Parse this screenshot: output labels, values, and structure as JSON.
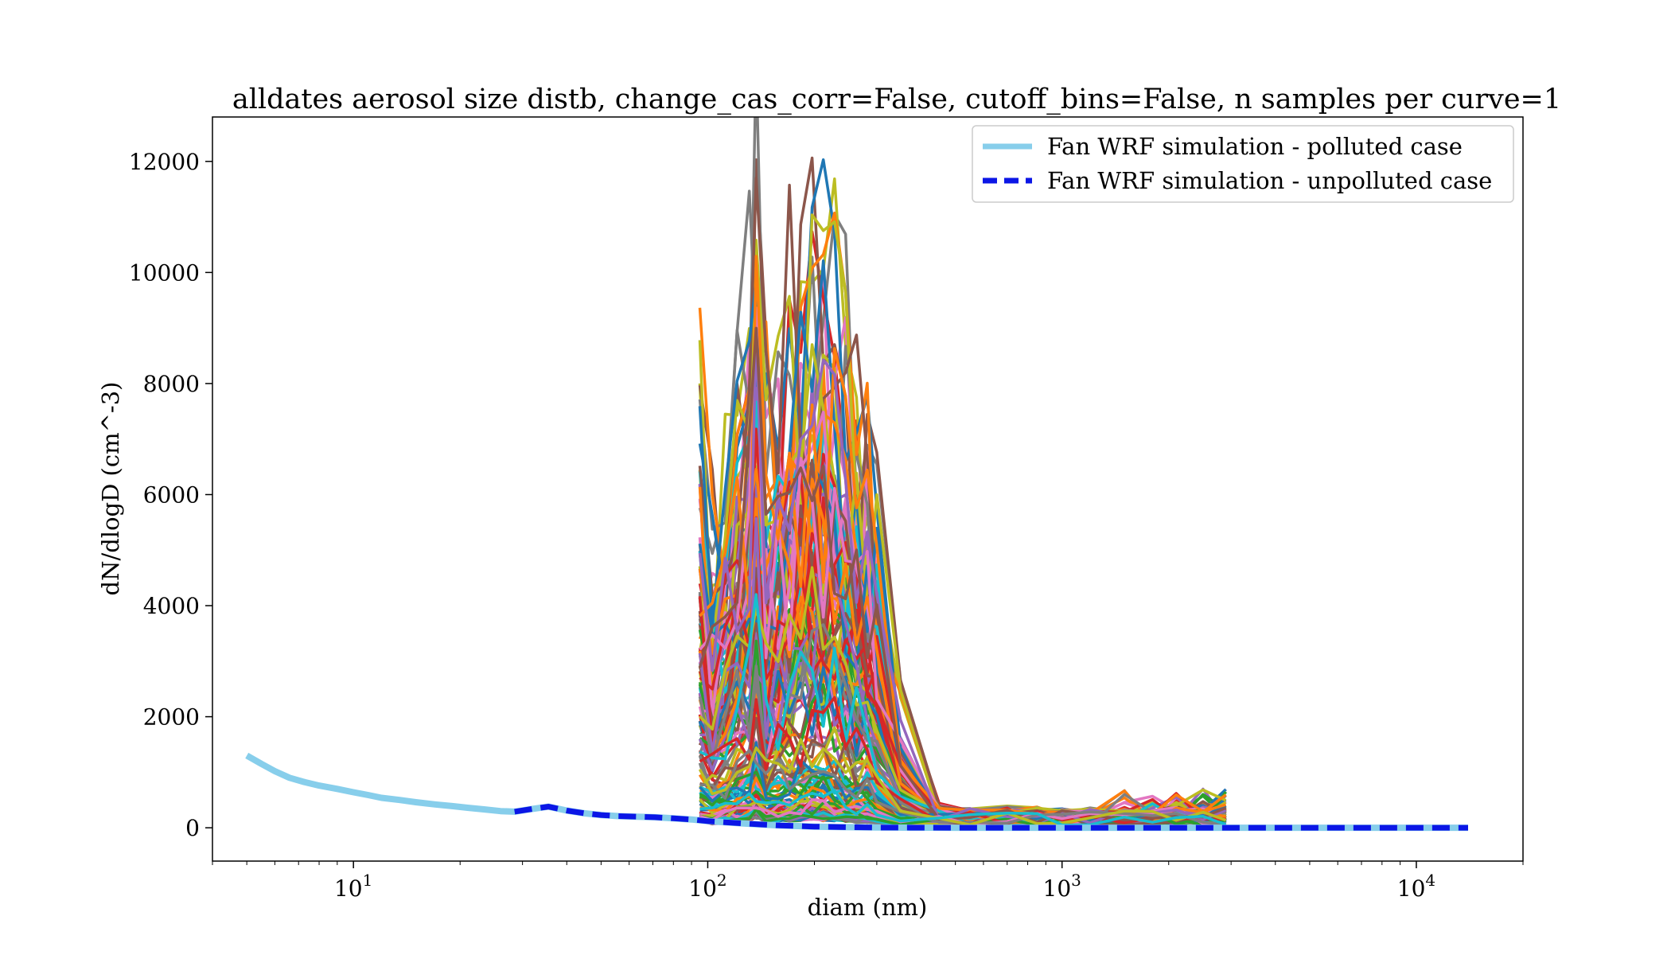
{
  "chart_data": {
    "type": "line",
    "title": "alldates aerosol size distb, change_cas_corr=False, cutoff_bins=False, n samples per curve=1",
    "xlabel": "diam (nm)",
    "ylabel": "dN/dlogD (cm^-3)",
    "x_scale": "log",
    "xlim": [
      4,
      20000
    ],
    "ylim": [
      -600,
      12800
    ],
    "x_ticks": [
      {
        "value": 10,
        "label": "10",
        "exp": "1"
      },
      {
        "value": 100,
        "label": "10",
        "exp": "2"
      },
      {
        "value": 1000,
        "label": "10",
        "exp": "3"
      },
      {
        "value": 10000,
        "label": "10",
        "exp": "4"
      }
    ],
    "y_ticks": [
      0,
      2000,
      4000,
      6000,
      8000,
      10000,
      12000
    ],
    "grid": false,
    "legend_position": "top-right",
    "series": [
      {
        "name": "Fan WRF simulation - polluted case",
        "color": "#87ceeb",
        "style": "solid",
        "x": [
          5,
          5.5,
          6,
          6.6,
          7.3,
          8,
          9,
          10,
          11,
          12,
          13.5,
          15,
          17,
          19,
          21,
          23.5,
          26,
          28.5,
          32,
          35.5,
          40,
          45,
          50,
          56,
          63,
          71,
          80,
          90,
          100,
          112,
          125,
          140,
          160,
          180,
          200,
          250,
          300,
          400,
          500,
          700,
          1000,
          1500,
          2000,
          3000,
          5000,
          7000,
          10000,
          14000
        ],
        "y": [
          1300,
          1150,
          1020,
          900,
          820,
          760,
          700,
          640,
          590,
          540,
          500,
          460,
          420,
          390,
          360,
          330,
          300,
          290,
          340,
          380,
          310,
          260,
          230,
          210,
          200,
          190,
          170,
          150,
          120,
          100,
          80,
          60,
          40,
          30,
          20,
          10,
          5,
          2,
          1,
          1,
          1,
          1,
          1,
          1,
          1,
          1,
          1,
          1
        ]
      },
      {
        "name": "Fan WRF simulation - unpolluted case",
        "color": "#0b16e6",
        "style": "dashed",
        "x": [
          28.5,
          32,
          35.5,
          40,
          45,
          50,
          56,
          63,
          71,
          80,
          90,
          100,
          112,
          125,
          140,
          160,
          180,
          200,
          250,
          300,
          400,
          500,
          700,
          1000,
          1500,
          2000,
          3000,
          5000,
          7000,
          10000,
          14000
        ],
        "y": [
          290,
          340,
          380,
          310,
          260,
          230,
          210,
          200,
          190,
          170,
          150,
          120,
          100,
          80,
          60,
          40,
          30,
          20,
          10,
          5,
          2,
          1,
          1,
          1,
          1,
          1,
          1,
          1,
          1,
          1,
          1
        ]
      }
    ]
  }
}
